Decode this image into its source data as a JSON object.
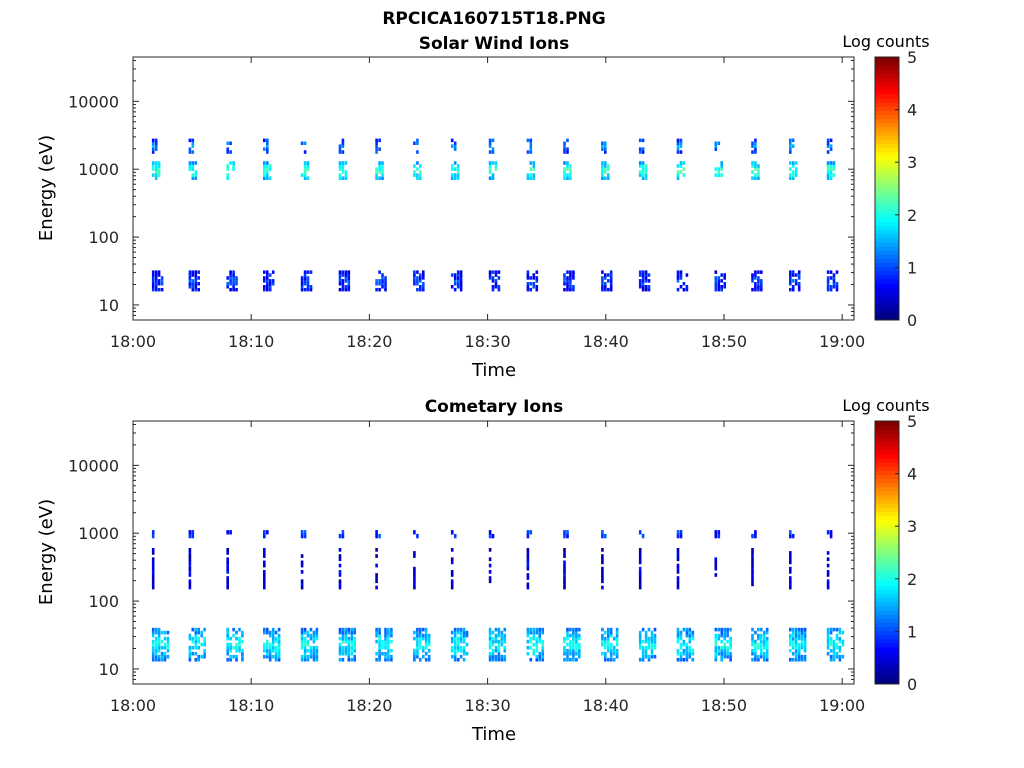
{
  "figure": {
    "title": "RPCICA160715T18.PNG"
  },
  "chart_data": [
    {
      "type": "heatmap",
      "title": "Solar Wind Ions",
      "xlabel": "Time",
      "ylabel": "Energy (eV)",
      "colorbar_label": "Log counts",
      "xlim": [
        "18:00",
        "19:01"
      ],
      "ylim": [
        6,
        45000
      ],
      "yscale": "log",
      "xticks": [
        "18:00",
        "18:10",
        "18:20",
        "18:30",
        "18:40",
        "18:50",
        "19:00"
      ],
      "yticks": [
        10,
        100,
        1000,
        10000
      ],
      "ytick_labels": [
        "10",
        "100",
        "1000",
        "10000"
      ],
      "clim": [
        0,
        5
      ],
      "colorbar_ticks": [
        "0",
        "1",
        "2",
        "3",
        "4",
        "5"
      ],
      "colormap": "jet",
      "sweep_start_minutes": [
        1.6,
        4.7,
        7.9,
        11.0,
        14.2,
        17.4,
        20.5,
        23.7,
        26.9,
        30.1,
        33.3,
        36.4,
        39.6,
        42.8,
        46.0,
        49.2,
        52.3,
        55.5,
        58.7
      ],
      "bands": [
        {
          "energy_min": 700,
          "energy_max": 1300,
          "log_counts": 2.2,
          "width_minutes": 0.7
        },
        {
          "energy_min": 1700,
          "energy_max": 2800,
          "log_counts": 1.3,
          "width_minutes": 0.4
        },
        {
          "energy_min": 16,
          "energy_max": 32,
          "log_counts": 0.9,
          "width_minutes": 1.0
        }
      ]
    },
    {
      "type": "heatmap",
      "title": "Cometary Ions",
      "xlabel": "Time",
      "ylabel": "Energy (eV)",
      "colorbar_label": "Log counts",
      "xlim": [
        "18:00",
        "19:01"
      ],
      "ylim": [
        6,
        45000
      ],
      "yscale": "log",
      "xticks": [
        "18:00",
        "18:10",
        "18:20",
        "18:30",
        "18:40",
        "18:50",
        "19:00"
      ],
      "yticks": [
        10,
        100,
        1000,
        10000
      ],
      "ytick_labels": [
        "10",
        "100",
        "1000",
        "10000"
      ],
      "clim": [
        0,
        5
      ],
      "colorbar_ticks": [
        "0",
        "1",
        "2",
        "3",
        "4",
        "5"
      ],
      "colormap": "jet",
      "sweep_start_minutes": [
        1.6,
        4.7,
        7.9,
        11.0,
        14.2,
        17.4,
        20.5,
        23.7,
        26.9,
        30.1,
        33.3,
        36.4,
        39.6,
        42.8,
        46.0,
        49.2,
        52.3,
        55.5,
        58.7
      ],
      "bands": [
        {
          "energy_min": 13,
          "energy_max": 40,
          "log_counts": 1.9,
          "width_minutes": 1.5
        },
        {
          "energy_min": 850,
          "energy_max": 1100,
          "log_counts": 1.0,
          "width_minutes": 0.4
        },
        {
          "energy_min": 150,
          "energy_max": 600,
          "log_counts": 0.5,
          "width_minutes": 0.15
        }
      ]
    }
  ]
}
